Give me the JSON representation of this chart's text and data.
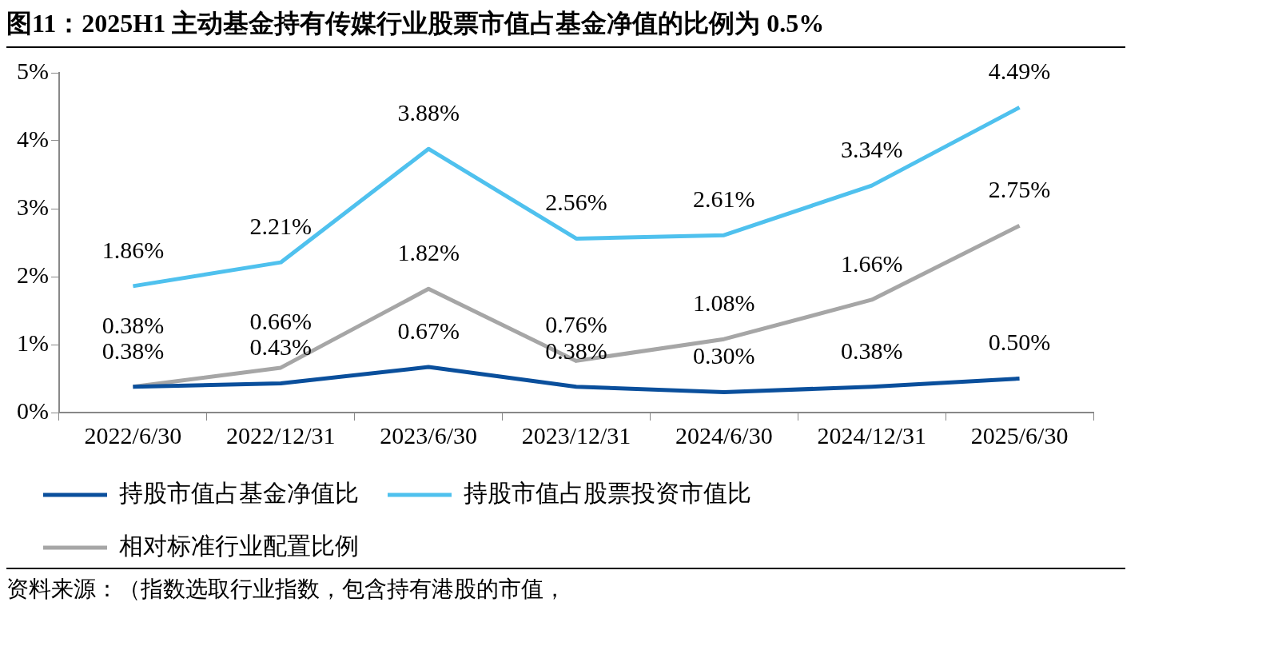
{
  "chart_data": {
    "type": "line",
    "title": "图11：2025H1 主动基金持有传媒行业股票市值占基金净值的比例为 0.5%",
    "categories": [
      "2022/6/30",
      "2022/12/31",
      "2023/6/30",
      "2023/12/31",
      "2024/6/30",
      "2024/12/31",
      "2025/6/30"
    ],
    "series": [
      {
        "name": "持股市值占基金净值比",
        "color": "#0a4f9c",
        "values": [
          0.38,
          0.43,
          0.67,
          0.38,
          0.3,
          0.38,
          0.5
        ],
        "value_labels": [
          "0.38%",
          "0.43%",
          "0.67%",
          "0.38%",
          "0.30%",
          "0.38%",
          "0.50%"
        ]
      },
      {
        "name": "持股市值占股票投资市值比",
        "color": "#4fc1ee",
        "values": [
          1.86,
          2.21,
          3.88,
          2.56,
          2.61,
          3.34,
          4.49
        ],
        "value_labels": [
          "1.86%",
          "2.21%",
          "3.88%",
          "2.56%",
          "2.61%",
          "3.34%",
          "4.49%"
        ]
      },
      {
        "name": "相对标准行业配置比例",
        "color": "#a6a6a6",
        "values": [
          0.38,
          0.66,
          1.82,
          0.76,
          1.08,
          1.66,
          2.75
        ],
        "value_labels": [
          "0.38%",
          "0.66%",
          "1.82%",
          "0.76%",
          "1.08%",
          "1.66%",
          "2.75%"
        ]
      }
    ],
    "ylim": [
      0,
      5
    ],
    "yticks": [
      {
        "value": 0,
        "label": "0%"
      },
      {
        "value": 1,
        "label": "1%"
      },
      {
        "value": 2,
        "label": "2%"
      },
      {
        "value": 3,
        "label": "3%"
      },
      {
        "value": 4,
        "label": "4%"
      },
      {
        "value": 5,
        "label": "5%"
      }
    ],
    "grid": false,
    "legend": "bottom",
    "marker": "none",
    "line_style": "solid",
    "annotations": [
      "资料来源：（指数选取行业指数，包含持有港股的市值，"
    ]
  }
}
